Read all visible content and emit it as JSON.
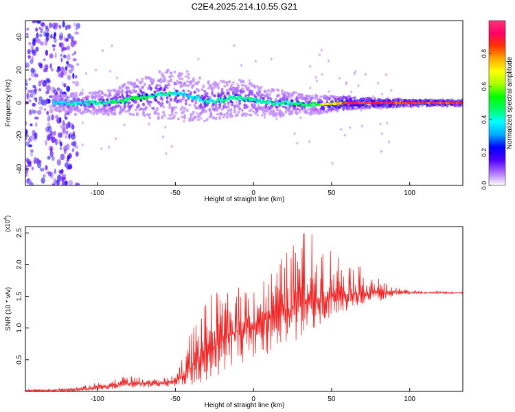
{
  "figure": {
    "title": "C2E4.2025.214.10.55.G21"
  },
  "chart_data": [
    {
      "type": "heatmap",
      "panel": "spectrogram",
      "xlabel": "Height of straight line (km)",
      "ylabel": "Frequency (Hz)",
      "xlim": [
        -146,
        134
      ],
      "ylim": [
        -50,
        50
      ],
      "xticks": [
        -100,
        -50,
        0,
        50,
        100
      ],
      "yticks": [
        -40,
        -20,
        0,
        20,
        40
      ],
      "colorbar": {
        "label": "Normalized spectral amplitude",
        "range": [
          0,
          1
        ],
        "ticks": [
          0.0,
          0.2,
          0.4,
          0.6,
          0.8
        ],
        "tick_labels": [
          "0.0",
          "0.2",
          "0.4",
          "0.6",
          "0.8"
        ],
        "colors": [
          "#ffffff",
          "#b070ff",
          "#5000ff",
          "#0000ff",
          "#00aaff",
          "#00ffff",
          "#00ff66",
          "#00ff00",
          "#aaff00",
          "#ffff00",
          "#ffaa00",
          "#ff3300",
          "#ff0066",
          "#ff3377"
        ]
      },
      "ridge": {
        "x": [
          -130,
          -110,
          -90,
          -75,
          -60,
          -50,
          -40,
          -30,
          -20,
          -10,
          0,
          10,
          20,
          30,
          40,
          50,
          60,
          70,
          80,
          90,
          100,
          110,
          120,
          134
        ],
        "center_hz": [
          0,
          0,
          0.5,
          3,
          5,
          6,
          4,
          1,
          2,
          3,
          2,
          0.5,
          0,
          -0.5,
          -1,
          -0.5,
          0,
          0,
          0,
          0,
          0,
          0,
          0,
          0
        ],
        "spread_hz": [
          3,
          4,
          5,
          7,
          9,
          10,
          9,
          8,
          7,
          7,
          6,
          5,
          5,
          4,
          3.5,
          3,
          2.5,
          2,
          1.8,
          1.5,
          1.3,
          1.2,
          1.1,
          1
        ],
        "amplitude": [
          0.35,
          0.4,
          0.45,
          0.5,
          0.45,
          0.4,
          0.35,
          0.4,
          0.45,
          0.45,
          0.45,
          0.4,
          0.45,
          0.45,
          0.5,
          0.7,
          0.9,
          0.95,
          0.95,
          0.9,
          0.9,
          0.9,
          0.9,
          0.9
        ]
      },
      "noise_region": {
        "x": [
          -146,
          -112
        ],
        "amplitude": 0.1
      }
    },
    {
      "type": "line",
      "panel": "snr",
      "xlabel": "Height of straight line (km)",
      "ylabel": "SNR (10 * v/v)",
      "y_multiplier_label": "(x10",
      "y_multiplier_exp": "4",
      "y_multiplier_close": ")",
      "xlim": [
        -146,
        134
      ],
      "ylim": [
        0,
        26000
      ],
      "xticks": [
        -100,
        -50,
        0,
        50,
        100
      ],
      "yticks": [
        5000,
        10000,
        15000,
        20000,
        25000
      ],
      "ytick_labels": [
        "0.5",
        "1.0",
        "1.5",
        "2.0",
        "2.5"
      ],
      "color": "#ee2222",
      "series": [
        {
          "x": [
            -146,
            -130,
            -110,
            -100,
            -90,
            -80,
            -70,
            -60,
            -50,
            -45,
            -40,
            -35,
            -30,
            -25,
            -20,
            -15,
            -10,
            -5,
            0,
            5,
            10,
            15,
            20,
            25,
            30,
            35,
            40,
            45,
            50,
            55,
            60,
            65,
            70,
            75,
            80,
            85,
            90,
            95,
            100,
            110,
            120,
            134
          ],
          "base": [
            200,
            200,
            300,
            600,
            900,
            1200,
            1200,
            1300,
            1600,
            2500,
            3800,
            5200,
            6200,
            7200,
            8000,
            8800,
            9400,
            10000,
            10500,
            11000,
            11500,
            12000,
            12500,
            13000,
            13500,
            14000,
            14500,
            14800,
            15000,
            15200,
            15300,
            15400,
            15500,
            15500,
            15500,
            15500,
            15600,
            15700,
            15600,
            15600,
            15600,
            15500
          ],
          "upper": [
            300,
            400,
            800,
            1400,
            2000,
            2600,
            2200,
            2000,
            2600,
            6000,
            10000,
            13000,
            14000,
            16000,
            15000,
            16000,
            16500,
            17000,
            17500,
            18000,
            19000,
            20000,
            22000,
            23000,
            26000,
            25500,
            24500,
            24000,
            23000,
            22000,
            21000,
            20000,
            19500,
            19000,
            18000,
            17000,
            16500,
            16200,
            15900,
            15800,
            15800,
            15700
          ],
          "lower": [
            0,
            0,
            0,
            200,
            400,
            600,
            600,
            700,
            800,
            600,
            800,
            1200,
            1800,
            2200,
            3000,
            3500,
            4000,
            4500,
            5000,
            5500,
            6000,
            6500,
            7000,
            7500,
            8000,
            9000,
            10000,
            11000,
            11500,
            12000,
            12500,
            13000,
            13500,
            14000,
            14200,
            14600,
            15000,
            15200,
            15300,
            15400,
            15400,
            15400
          ]
        }
      ]
    }
  ]
}
